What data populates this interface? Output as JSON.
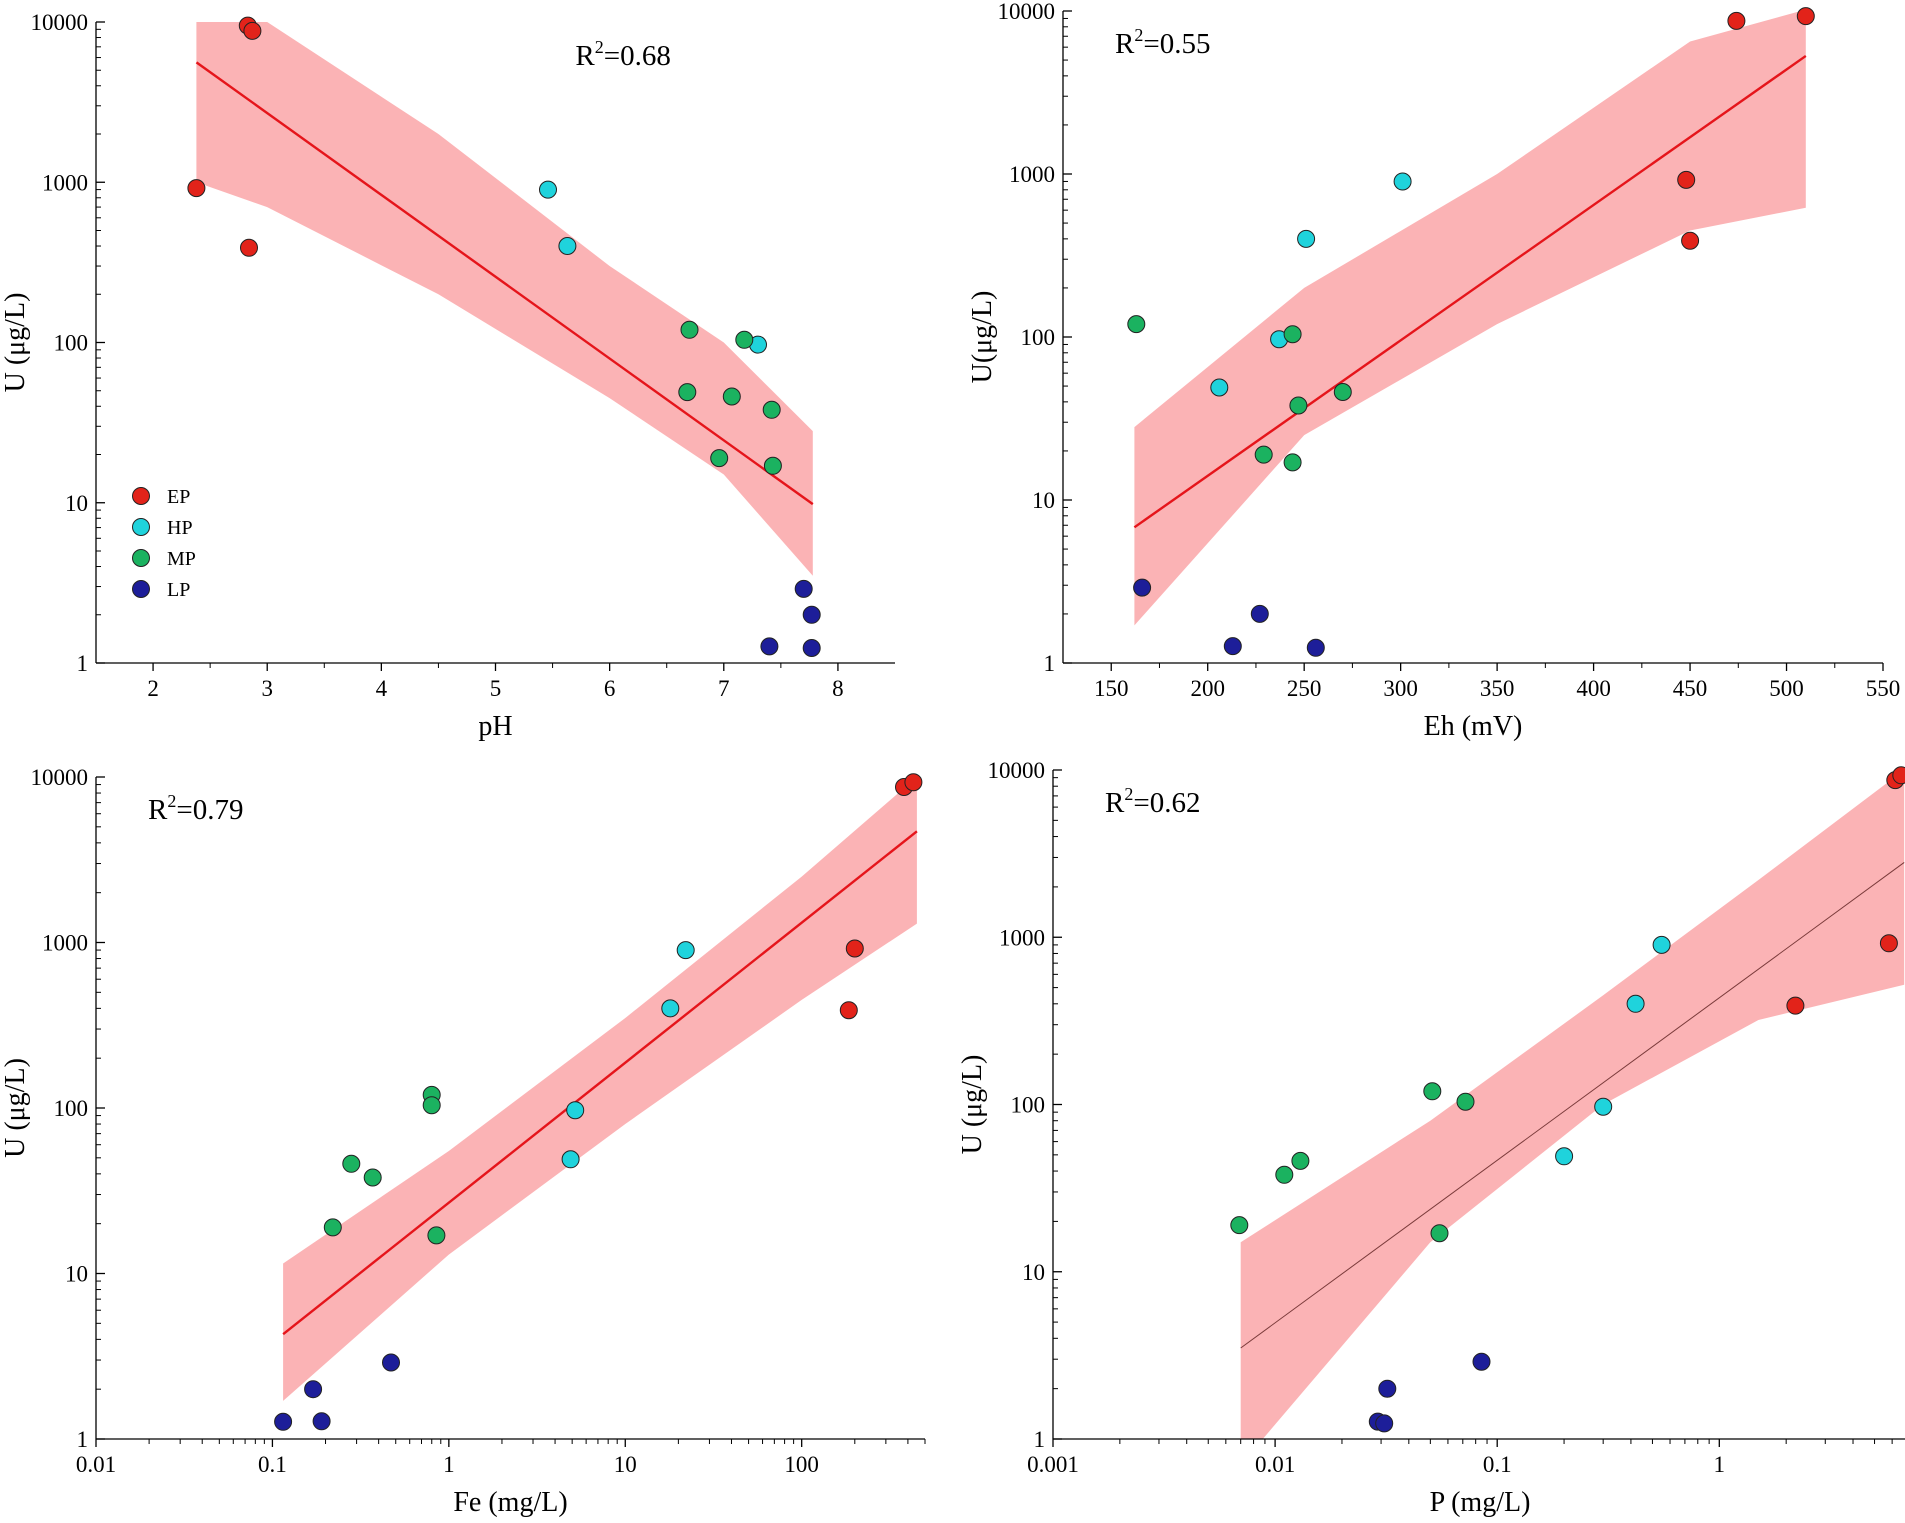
{
  "figure_title": "",
  "series_info": [
    {
      "name": "EP",
      "color": "#e2231a"
    },
    {
      "name": "HP",
      "color": "#1fd3dc"
    },
    {
      "name": "MP",
      "color": "#1bb260"
    },
    {
      "name": "LP",
      "color": "#1d1e99"
    }
  ],
  "band_color": "#fbb3b5",
  "fit_color": "#e5151b",
  "chart_data": [
    {
      "id": "ph",
      "type": "scatter",
      "title": "",
      "xlabel": "pH",
      "ylabel": "U (μg/L)",
      "xscale": "linear",
      "yscale": "log",
      "xlim": [
        1.5,
        8.5
      ],
      "ylim": [
        1,
        10000
      ],
      "xticks": [
        2,
        3,
        4,
        5,
        6,
        7,
        8
      ],
      "xtick_labels": [
        "2",
        "3",
        "4",
        "5",
        "6",
        "7",
        "8"
      ],
      "yticks": [
        1,
        10,
        100,
        1000,
        10000
      ],
      "ytick_labels": [
        "1",
        "10",
        "100",
        "1000",
        "10000"
      ],
      "r2_label": "R²=0.68",
      "r2_base": "R",
      "r2_sup": "2",
      "r2_value": "=0.68",
      "r2_position": "top-center",
      "legend": {
        "show": true,
        "position": "bottom-left",
        "entries": [
          "EP",
          "HP",
          "MP",
          "LP"
        ]
      },
      "fit": {
        "x": [
          2.38,
          7.78
        ],
        "y": [
          5600,
          9.8
        ]
      },
      "band": {
        "x": [
          2.38,
          3.0,
          4.5,
          6.0,
          7.0,
          7.78
        ],
        "upper": [
          10000,
          10000,
          2000,
          300,
          100,
          28
        ],
        "lower": [
          1000,
          700,
          200,
          45,
          15,
          3.5
        ]
      },
      "series": [
        {
          "name": "EP",
          "points": [
            [
              2.38,
              920
            ],
            [
              2.83,
              9500
            ],
            [
              2.87,
              8800
            ],
            [
              2.84,
              390
            ]
          ]
        },
        {
          "name": "HP",
          "points": [
            [
              5.46,
              900
            ],
            [
              5.63,
              400
            ],
            [
              7.3,
              97
            ]
          ]
        },
        {
          "name": "MP",
          "points": [
            [
              6.7,
              120
            ],
            [
              7.18,
              104
            ],
            [
              7.42,
              38
            ],
            [
              7.07,
              46
            ],
            [
              6.96,
              19
            ],
            [
              7.43,
              17
            ],
            [
              6.68,
              49
            ]
          ]
        },
        {
          "name": "LP",
          "points": [
            [
              7.7,
              2.9
            ],
            [
              7.77,
              2.0
            ],
            [
              7.4,
              1.27
            ],
            [
              7.77,
              1.24
            ]
          ]
        }
      ]
    },
    {
      "id": "eh",
      "type": "scatter",
      "title": "",
      "xlabel": "Eh (mV)",
      "ylabel": "U(μg/L)",
      "xscale": "linear",
      "yscale": "log",
      "xlim": [
        125,
        550
      ],
      "ylim": [
        1,
        10000
      ],
      "xticks": [
        150,
        200,
        250,
        300,
        350,
        400,
        450,
        500,
        550
      ],
      "xtick_labels": [
        "150",
        "200",
        "250",
        "300",
        "350",
        "400",
        "450",
        "500",
        "550"
      ],
      "yticks": [
        1,
        10,
        100,
        1000,
        10000
      ],
      "ytick_labels": [
        "1",
        "10",
        "100",
        "1000",
        "10000"
      ],
      "r2_label": "R²=0.55",
      "r2_base": "R",
      "r2_sup": "2",
      "r2_value": "=0.55",
      "r2_position": "top-left",
      "legend": {
        "show": false
      },
      "fit": {
        "x": [
          162,
          510
        ],
        "y": [
          6.8,
          5300
        ]
      },
      "band": {
        "x": [
          162,
          250,
          350,
          450,
          510
        ],
        "upper": [
          28,
          200,
          1000,
          6500,
          13000
        ],
        "lower": [
          1.7,
          25,
          120,
          450,
          620
        ]
      },
      "series": [
        {
          "name": "EP",
          "points": [
            [
              448,
              920
            ],
            [
              450,
              390
            ],
            [
              474,
              8700
            ],
            [
              510,
              9300
            ]
          ]
        },
        {
          "name": "HP",
          "points": [
            [
              301,
              900
            ],
            [
              251,
              400
            ],
            [
              237,
              97
            ],
            [
              206,
              49
            ]
          ]
        },
        {
          "name": "MP",
          "points": [
            [
              163,
              120
            ],
            [
              244,
              104
            ],
            [
              247,
              38
            ],
            [
              270,
              46
            ],
            [
              229,
              19
            ],
            [
              244,
              17
            ]
          ]
        },
        {
          "name": "LP",
          "points": [
            [
              166,
              2.9
            ],
            [
              227,
              2.0
            ],
            [
              213,
              1.27
            ],
            [
              256,
              1.24
            ]
          ]
        }
      ]
    },
    {
      "id": "fe",
      "type": "scatter",
      "title": "",
      "xlabel": "Fe (mg/L)",
      "ylabel": "U (μg/L)",
      "xscale": "log",
      "yscale": "log",
      "xlim": [
        0.01,
        500
      ],
      "ylim": [
        1,
        10000
      ],
      "xticks": [
        0.01,
        0.1,
        1,
        10,
        100
      ],
      "xtick_labels": [
        "0.01",
        "0.1",
        "1",
        "10",
        "100"
      ],
      "yticks": [
        1,
        10,
        100,
        1000,
        10000
      ],
      "ytick_labels": [
        "1",
        "10",
        "100",
        "1000",
        "10000"
      ],
      "r2_label": "R²=0.79",
      "r2_base": "R",
      "r2_sup": "2",
      "r2_value": "=0.79",
      "r2_position": "top-left",
      "legend": {
        "show": false
      },
      "fit": {
        "x": [
          0.115,
          450
        ],
        "y": [
          4.3,
          4700
        ]
      },
      "band": {
        "x": [
          0.115,
          1,
          10,
          100,
          450
        ],
        "upper": [
          11.5,
          55,
          350,
          2500,
          10000
        ],
        "lower": [
          1.7,
          13,
          80,
          450,
          1300
        ]
      },
      "series": [
        {
          "name": "EP",
          "points": [
            [
              200,
              920
            ],
            [
              185,
              390
            ],
            [
              380,
              8700
            ],
            [
              430,
              9300
            ]
          ]
        },
        {
          "name": "HP",
          "points": [
            [
              22,
              900
            ],
            [
              18,
              400
            ],
            [
              5.2,
              97
            ],
            [
              4.9,
              49
            ]
          ]
        },
        {
          "name": "MP",
          "points": [
            [
              0.8,
              120
            ],
            [
              0.8,
              104
            ],
            [
              0.28,
              46
            ],
            [
              0.37,
              38
            ],
            [
              0.22,
              19
            ],
            [
              0.85,
              17
            ]
          ]
        },
        {
          "name": "LP",
          "points": [
            [
              0.47,
              2.9
            ],
            [
              0.17,
              2.0
            ],
            [
              0.115,
              1.27
            ],
            [
              0.19,
              1.28
            ]
          ]
        }
      ]
    },
    {
      "id": "p",
      "type": "scatter",
      "title": "",
      "xlabel": "P (mg/L)",
      "ylabel": "U (μg/L)",
      "xscale": "log",
      "yscale": "log",
      "xlim": [
        0.001,
        7
      ],
      "ylim": [
        1,
        10000
      ],
      "xticks": [
        0.001,
        0.01,
        0.1,
        1
      ],
      "xtick_labels": [
        "0.001",
        "0.01",
        "0.1",
        "1"
      ],
      "yticks": [
        1,
        10,
        100,
        1000,
        10000
      ],
      "ytick_labels": [
        "1",
        "10",
        "100",
        "1000",
        "10000"
      ],
      "r2_label": "R²=0.62",
      "r2_base": "R",
      "r2_sup": "2",
      "r2_value": "=0.62",
      "r2_position": "top-left",
      "legend": {
        "show": false
      },
      "fit": {
        "x": [
          0.007,
          6.8
        ],
        "y": [
          3.5,
          2800
        ]
      },
      "band": {
        "x": [
          0.007,
          0.05,
          0.3,
          1.5,
          6.8
        ],
        "upper": [
          15,
          80,
          450,
          2200,
          10000
        ],
        "lower": [
          0.7,
          15,
          100,
          320,
          520
        ]
      },
      "series": [
        {
          "name": "EP",
          "points": [
            [
              2.2,
              390
            ],
            [
              5.8,
              920
            ],
            [
              6.2,
              8700
            ],
            [
              6.6,
              9300
            ]
          ]
        },
        {
          "name": "HP",
          "points": [
            [
              0.55,
              900
            ],
            [
              0.42,
              400
            ],
            [
              0.3,
              97
            ],
            [
              0.2,
              49
            ]
          ]
        },
        {
          "name": "MP",
          "points": [
            [
              0.051,
              120
            ],
            [
              0.072,
              104
            ],
            [
              0.013,
              46
            ],
            [
              0.011,
              38
            ],
            [
              0.0069,
              19
            ],
            [
              0.055,
              17
            ]
          ]
        },
        {
          "name": "LP",
          "points": [
            [
              0.085,
              2.9
            ],
            [
              0.032,
              2.0
            ],
            [
              0.029,
              1.27
            ],
            [
              0.031,
              1.24
            ]
          ]
        }
      ]
    }
  ]
}
